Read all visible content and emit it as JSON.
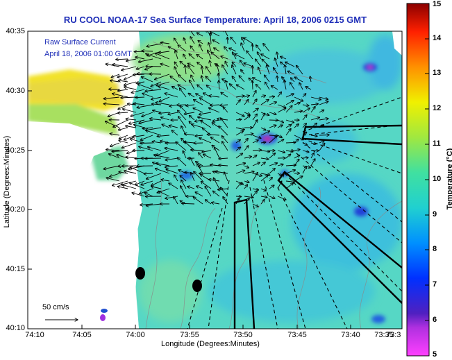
{
  "title": "RU COOL  NOAA-17 Sea Surface Temperature:  April 18, 2006 0215 GMT",
  "legend": {
    "line1": "Raw Surface Current",
    "line2": "April 18, 2006 01:00 GMT"
  },
  "scale": {
    "label": "50 cm/s"
  },
  "axes": {
    "x_title": "Longitude (Degrees:Minutes)",
    "y_title": "Latitude (Degrees:Minutes)",
    "x_ticks": [
      "74:10",
      "74:05",
      "74:00",
      "73:55",
      "73:50",
      "73:45",
      "73:40",
      "73:35",
      "73:3"
    ],
    "y_ticks": [
      "40:35",
      "40:30",
      "40:25",
      "40:20",
      "40:15",
      "40:10"
    ]
  },
  "colorbar": {
    "title": "Temperature (°C)",
    "ticks": [
      "15",
      "14",
      "13",
      "12",
      "11",
      "10",
      "9",
      "8",
      "7",
      "6",
      "5"
    ],
    "range": [
      5,
      15
    ]
  },
  "colors": {
    "title": "#1f2fb8",
    "land": "#ffffff",
    "sea_base": "#4fd3c8"
  }
}
